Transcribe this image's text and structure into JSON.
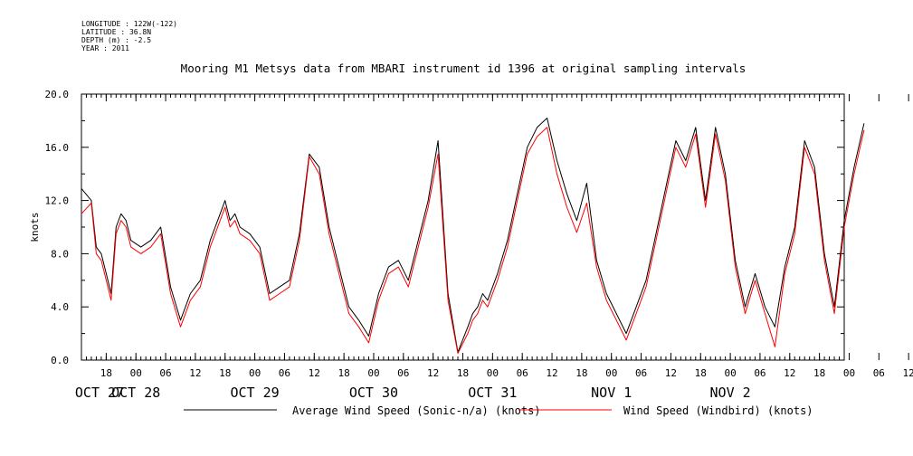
{
  "meta": {
    "longitude": "LONGITUDE : 122W(-122)",
    "latitude": "LATITUDE : 36.8N",
    "depth": "DEPTH (m) : -2.5",
    "year": "YEAR : 2011"
  },
  "chart_data": {
    "type": "line",
    "title": "Mooring M1 Metsys data from MBARI instrument id 1396 at original sampling intervals",
    "xlabel": "",
    "ylabel": "knots",
    "x_start": "2011-10-27 13:00",
    "x_end": "2011-11-02 23:00",
    "ylim": [
      0,
      20
    ],
    "y_ticks": [
      "0.0",
      "4.0",
      "8.0",
      "12.0",
      "16.0",
      "20.0"
    ],
    "x_hour_ticks": [
      "18",
      "00",
      "06",
      "12",
      "18",
      "00",
      "06",
      "12",
      "18",
      "00",
      "06",
      "12",
      "18",
      "00",
      "06",
      "12",
      "18",
      "00",
      "06",
      "12",
      "18",
      "00",
      "06",
      "12",
      "18",
      "00",
      "06",
      "12",
      "18"
    ],
    "x_date_labels": [
      "OCT 27",
      "OCT 28",
      "OCT 29",
      "OCT 30",
      "OCT 31",
      "NOV  1",
      "NOV  2"
    ],
    "series": [
      {
        "name": "Average Wind Speed (Sonic-n/a) (knots)",
        "color": "#000000",
        "x_hours": [
          0,
          2,
          3,
          4,
          5,
          6,
          7,
          8,
          9,
          10,
          12,
          14,
          16,
          18,
          20,
          22,
          24,
          26,
          28,
          29,
          30,
          31,
          32,
          34,
          36,
          38,
          40,
          42,
          44,
          46,
          48,
          50,
          52,
          54,
          56,
          58,
          60,
          62,
          64,
          66,
          68,
          70,
          72,
          74,
          76,
          78,
          79,
          80,
          81,
          82,
          84,
          86,
          88,
          90,
          92,
          94,
          96,
          98,
          100,
          102,
          104,
          106,
          108,
          110,
          112,
          114,
          116,
          118,
          120,
          122,
          124,
          126,
          128,
          130,
          132,
          134,
          136,
          138,
          140,
          142,
          144,
          146,
          148,
          150,
          152,
          154,
          156,
          158
        ],
        "values": [
          12.9,
          12.0,
          8.5,
          8.0,
          6.5,
          5.0,
          10.0,
          11.0,
          10.5,
          9.0,
          8.5,
          9.0,
          10.0,
          5.5,
          3.0,
          5.0,
          6.0,
          9.0,
          11.0,
          12.0,
          10.5,
          11.0,
          10.0,
          9.5,
          8.5,
          5.0,
          5.5,
          6.0,
          9.5,
          15.5,
          14.5,
          10.0,
          7.0,
          4.0,
          3.0,
          1.8,
          5.0,
          7.0,
          7.5,
          6.0,
          9.0,
          12.0,
          16.5,
          5.0,
          0.6,
          2.5,
          3.5,
          4.0,
          5.0,
          4.5,
          6.5,
          9.0,
          12.5,
          16.0,
          17.5,
          18.2,
          15.0,
          12.5,
          10.5,
          13.3,
          7.5,
          5.0,
          3.5,
          2.0,
          4.0,
          6.0,
          9.5,
          13.0,
          16.5,
          15.0,
          17.5,
          12.0,
          17.5,
          14.0,
          7.5,
          4.0,
          6.5,
          4.0,
          2.5,
          7.0,
          10.0,
          16.5,
          14.5,
          8.0,
          4.0,
          10.5,
          14.5,
          17.8
        ]
      },
      {
        "name": "Wind Speed (Windbird) (knots)",
        "color": "#ff0000",
        "x_hours": [
          0,
          2,
          3,
          4,
          5,
          6,
          7,
          8,
          9,
          10,
          12,
          14,
          16,
          18,
          20,
          22,
          24,
          26,
          28,
          29,
          30,
          31,
          32,
          34,
          36,
          38,
          40,
          42,
          44,
          46,
          48,
          50,
          52,
          54,
          56,
          58,
          60,
          62,
          64,
          66,
          68,
          70,
          72,
          74,
          76,
          78,
          79,
          80,
          81,
          82,
          84,
          86,
          88,
          90,
          92,
          94,
          96,
          98,
          100,
          102,
          104,
          106,
          108,
          110,
          112,
          114,
          116,
          118,
          120,
          122,
          124,
          126,
          128,
          130,
          132,
          134,
          136,
          138,
          140,
          142,
          144,
          146,
          148,
          150,
          152,
          154,
          156,
          158
        ],
        "values": [
          11.0,
          11.8,
          8.0,
          7.5,
          6.0,
          4.5,
          9.5,
          10.5,
          10.0,
          8.5,
          8.0,
          8.5,
          9.5,
          5.0,
          2.5,
          4.5,
          5.5,
          8.5,
          10.5,
          11.5,
          10.0,
          10.5,
          9.5,
          9.0,
          8.0,
          4.5,
          5.0,
          5.5,
          9.0,
          15.3,
          14.0,
          9.5,
          6.5,
          3.5,
          2.5,
          1.3,
          4.5,
          6.5,
          7.0,
          5.5,
          8.5,
          11.5,
          15.5,
          4.5,
          0.5,
          2.0,
          3.0,
          3.5,
          4.5,
          4.0,
          6.0,
          8.5,
          12.0,
          15.5,
          16.8,
          17.5,
          14.0,
          11.5,
          9.6,
          11.8,
          7.0,
          4.5,
          3.0,
          1.5,
          3.5,
          5.5,
          9.0,
          12.5,
          16.0,
          14.5,
          17.0,
          11.5,
          17.0,
          13.5,
          7.0,
          3.5,
          6.0,
          3.5,
          1.0,
          6.5,
          9.5,
          16.0,
          14.0,
          7.5,
          3.5,
          10.0,
          14.0,
          17.3
        ]
      }
    ],
    "legend_position": "bottom",
    "grid": false
  }
}
